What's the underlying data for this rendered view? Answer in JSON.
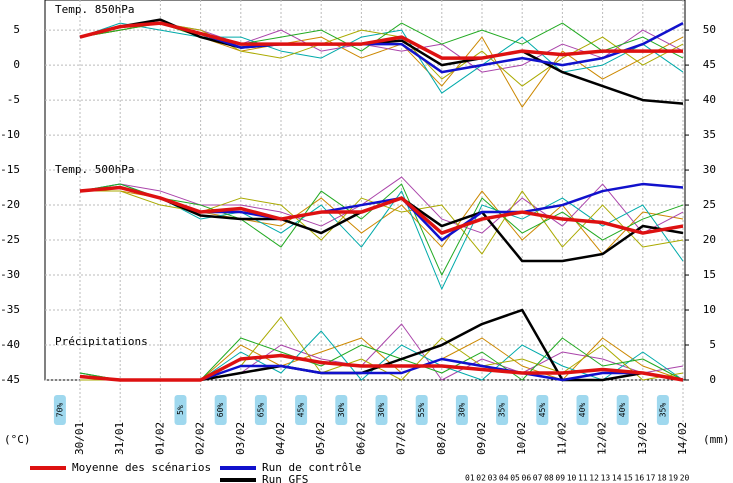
{
  "chart_data": {
    "type": "line",
    "categories": [
      "30/01",
      "31/01",
      "01/02",
      "02/02",
      "03/02",
      "04/02",
      "05/02",
      "06/02",
      "07/02",
      "08/02",
      "09/02",
      "10/02",
      "11/02",
      "12/02",
      "13/02",
      "14/02"
    ],
    "ylim": [
      -45,
      9.3
    ],
    "yticks": [
      5,
      0,
      -5,
      -10,
      -15,
      -20,
      -25,
      -30,
      -35,
      -40,
      -45
    ],
    "y2lim": [
      0,
      54.3
    ],
    "y2ticks": [
      50,
      45,
      40,
      35,
      30,
      25,
      20,
      15,
      10,
      5,
      0
    ],
    "ylabel": "(°C)",
    "y2label": "(mm)",
    "grid": true,
    "panels": [
      {
        "title": "Temp. 850hPa",
        "series": [
          {
            "name": "Moyenne des scénarios",
            "color": "#dd1111",
            "width": 3.5,
            "values": [
              4,
              5.5,
              6,
              4.5,
              3,
              3,
              3,
              3,
              4,
              1,
              1,
              2,
              1.5,
              2,
              2,
              2
            ]
          },
          {
            "name": "Run de contrôle",
            "color": "#1111cc",
            "width": 2.5,
            "values": [
              4,
              5.5,
              6,
              4.5,
              2.5,
              3,
              3,
              3,
              3,
              -1,
              0,
              1,
              0,
              1,
              3,
              6
            ]
          },
          {
            "name": "Run GFS",
            "color": "#000000",
            "width": 2.5,
            "values": [
              4,
              5.5,
              6.5,
              4,
              2.5,
              3,
              3,
              3,
              3.5,
              0,
              1,
              2,
              -1,
              -3,
              -5,
              -5.5
            ]
          },
          {
            "color": "#22aa22",
            "width": 1,
            "values": [
              4,
              5,
              6,
              4,
              3,
              4,
              5,
              2,
              6,
              3,
              5,
              3,
              6,
              2,
              4,
              1
            ]
          },
          {
            "color": "#aaaa00",
            "width": 1,
            "values": [
              4,
              5,
              6,
              5,
              2,
              1,
              3,
              5,
              4,
              -2,
              2,
              -3,
              1,
              4,
              0,
              3
            ]
          },
          {
            "color": "#00aaaa",
            "width": 1,
            "values": [
              4,
              6,
              5,
              4,
              4,
              2,
              1,
              4,
              5,
              -4,
              0,
              4,
              -1,
              0,
              3,
              -1
            ]
          },
          {
            "color": "#aa44aa",
            "width": 1,
            "values": [
              4,
              5,
              6,
              5,
              3,
              5,
              2,
              3,
              2,
              3,
              -1,
              0,
              3,
              1,
              5,
              2
            ]
          },
          {
            "color": "#cc8800",
            "width": 1,
            "values": [
              4,
              5,
              6,
              4,
              2,
              3,
              4,
              1,
              3,
              -3,
              4,
              -6,
              2,
              -2,
              1,
              4
            ]
          }
        ]
      },
      {
        "title": "Temp. 500hPa",
        "series": [
          {
            "color": "#dd1111",
            "width": 3.5,
            "values": [
              -18,
              -17.5,
              -19,
              -21,
              -20.5,
              -22,
              -21,
              -21,
              -19,
              -24,
              -22,
              -21,
              -22,
              -22.5,
              -24,
              -23
            ]
          },
          {
            "color": "#1111cc",
            "width": 2.5,
            "values": [
              -18,
              -17.5,
              -19,
              -21,
              -21,
              -22,
              -21,
              -20,
              -19,
              -25,
              -21,
              -21,
              -20,
              -18,
              -17,
              -17.5
            ]
          },
          {
            "color": "#000000",
            "width": 2.5,
            "values": [
              -18,
              -17.5,
              -19,
              -21.5,
              -22,
              -22,
              -24,
              -21,
              -19,
              -23,
              -21,
              -28,
              -28,
              -27,
              -23,
              -24
            ]
          },
          {
            "color": "#22aa22",
            "width": 1,
            "values": [
              -18,
              -17,
              -19,
              -20,
              -22,
              -26,
              -18,
              -22,
              -17,
              -30,
              -19,
              -24,
              -21,
              -25,
              -22,
              -20
            ]
          },
          {
            "color": "#aaaa00",
            "width": 1,
            "values": [
              -18,
              -18,
              -20,
              -21,
              -19,
              -20,
              -25,
              -19,
              -21,
              -20,
              -27,
              -18,
              -26,
              -20,
              -26,
              -25
            ]
          },
          {
            "color": "#00aaaa",
            "width": 1,
            "values": [
              -18,
              -17,
              -19,
              -22,
              -21,
              -24,
              -20,
              -26,
              -18,
              -32,
              -20,
              -22,
              -19,
              -23,
              -20,
              -28
            ]
          },
          {
            "color": "#aa44aa",
            "width": 1,
            "values": [
              -18,
              -17,
              -18,
              -20,
              -20,
              -21,
              -23,
              -20,
              -16,
              -22,
              -24,
              -19,
              -23,
              -17,
              -24,
              -21
            ]
          },
          {
            "color": "#cc8800",
            "width": 1,
            "values": [
              -18,
              -18,
              -19,
              -21,
              -22,
              -23,
              -19,
              -24,
              -20,
              -26,
              -18,
              -25,
              -20,
              -27,
              -21,
              -22
            ]
          }
        ]
      },
      {
        "title": "Précipitations",
        "series": [
          {
            "color": "#dd1111",
            "width": 3.5,
            "axis": "y2",
            "values": [
              0.5,
              0,
              0,
              0,
              3,
              3.5,
              2.5,
              2,
              2,
              2,
              1.5,
              1,
              1,
              1.5,
              1,
              0
            ]
          },
          {
            "color": "#1111cc",
            "width": 2.5,
            "axis": "y2",
            "values": [
              0.5,
              0,
              0,
              0,
              2,
              2,
              1,
              1,
              1,
              3,
              2,
              1,
              0,
              1,
              1,
              0
            ]
          },
          {
            "color": "#000000",
            "width": 2.5,
            "axis": "y2",
            "values": [
              0.5,
              0,
              0,
              0,
              1,
              2,
              1,
              1,
              3,
              5,
              8,
              10,
              0,
              0,
              1,
              0
            ]
          },
          {
            "color": "#22aa22",
            "width": 1,
            "axis": "y2",
            "values": [
              1,
              0,
              0,
              0,
              6,
              4,
              2,
              5,
              3,
              1,
              4,
              0,
              6,
              2,
              3,
              0
            ]
          },
          {
            "color": "#aaaa00",
            "width": 1,
            "axis": "y2",
            "values": [
              0,
              0,
              0,
              0,
              2,
              9,
              1,
              3,
              0,
              6,
              2,
              3,
              1,
              5,
              0,
              1
            ]
          },
          {
            "color": "#00aaaa",
            "width": 1,
            "axis": "y2",
            "values": [
              1,
              0,
              0,
              0,
              4,
              1,
              7,
              0,
              5,
              2,
              0,
              5,
              2,
              0,
              4,
              0
            ]
          },
          {
            "color": "#aa44aa",
            "width": 1,
            "axis": "y2",
            "values": [
              0,
              0,
              0,
              0,
              1,
              5,
              3,
              2,
              8,
              0,
              3,
              1,
              4,
              3,
              1,
              2
            ]
          },
          {
            "color": "#cc8800",
            "width": 1,
            "axis": "y2",
            "values": [
              1,
              0,
              0,
              0,
              5,
              2,
              4,
              6,
              1,
              3,
              6,
              2,
              0,
              6,
              2,
              0
            ]
          }
        ]
      }
    ],
    "probabilities": [
      70,
      null,
      null,
      5,
      60,
      65,
      45,
      30,
      30,
      55,
      30,
      35,
      45,
      40,
      40,
      35
    ],
    "probability_labels": [
      "70%",
      null,
      null,
      "5%",
      "60%",
      "65%",
      "45%",
      "30%",
      "30%",
      "55%",
      "30%",
      "35%",
      "45%",
      "40%",
      "40%",
      "35%"
    ],
    "member_labels": [
      "01",
      "02",
      "03",
      "04",
      "05",
      "06",
      "07",
      "08",
      "09",
      "10",
      "11",
      "12",
      "13",
      "14",
      "15",
      "16",
      "17",
      "18",
      "19",
      "20"
    ]
  }
}
